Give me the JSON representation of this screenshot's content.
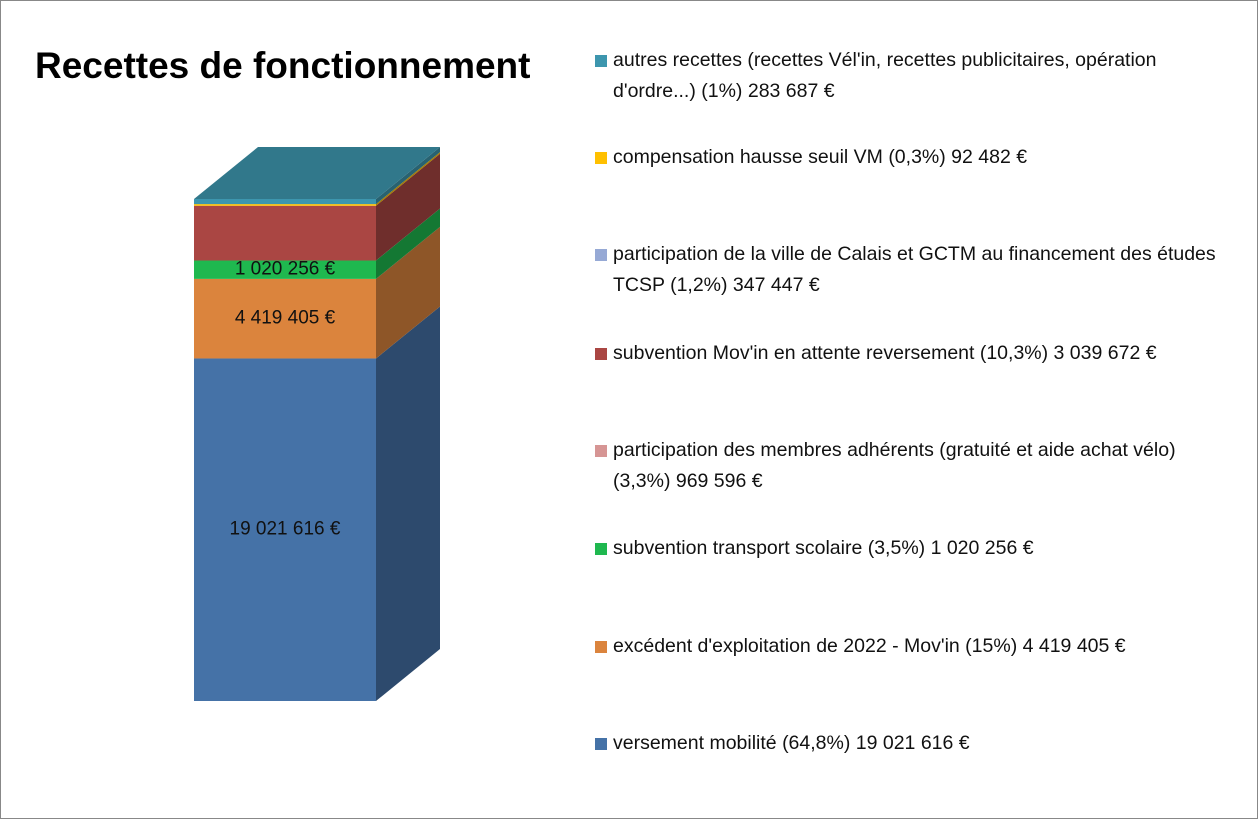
{
  "chart_data": {
    "type": "bar3d-stacked",
    "title": "Recettes de fonctionnement",
    "categories": [
      null
    ],
    "series": [
      {
        "name": "versement mobilité (64,8%) 19 021 616 €",
        "color": "#4572a7",
        "values": [
          19021616
        ],
        "value_labels": [
          "19 021 616 €"
        ]
      },
      {
        "name": "excédent d'exploitation de 2022 - Mov'in (15%) 4 419 405 €",
        "color": "#db843d",
        "values": [
          4419405
        ],
        "value_labels": [
          "4 419 405 €"
        ]
      },
      {
        "name": "subvention transport scolaire (3,5%) 1 020 256 €",
        "color": "#1fb84f",
        "values": [
          1020256
        ],
        "value_labels": [
          "1 020 256 €"
        ]
      },
      {
        "name": "participation des membres adhérents (gratuité et aide achat vélo) (3,3%) 969 596 €",
        "color": "#d69594",
        "values": [
          null
        ]
      },
      {
        "name": "subvention Mov'in en attente reversement (10,3%) 3 039 672 €",
        "color": "#aa4643",
        "values": [
          3039672
        ]
      },
      {
        "name": "participation de la ville de Calais et GCTM au financement des études TCSP (1,2%) 347 447 €",
        "color": "#96a9d5",
        "values": [
          null
        ]
      },
      {
        "name": "compensation hausse seuil VM (0,3%) 92 482 €",
        "color": "#ffc000",
        "values": [
          92482
        ]
      },
      {
        "name": "autres recettes (recettes Vél'in, recettes publicitaires, opération d'ordre...) (1%) 283 687 €",
        "color": "#3d96ae",
        "values": [
          283687
        ]
      }
    ]
  }
}
